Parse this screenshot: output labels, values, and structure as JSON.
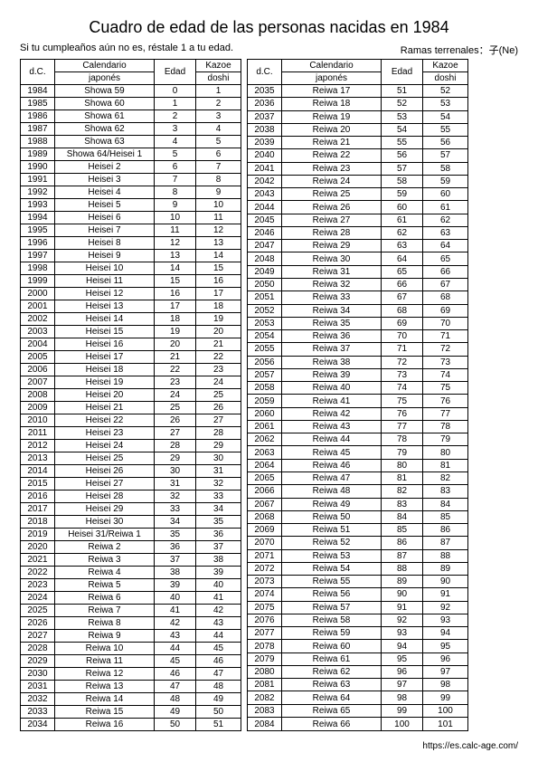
{
  "title": "Cuadro de edad de las personas nacidas en 1984",
  "sub_left": "Si tu cumpleaños aún no es, réstale 1 a tu edad.",
  "sub_right": "Ramas terrenales：子(Ne)",
  "headers": {
    "dc": "d.C.",
    "cal1": "Calendario",
    "cal2": "japonés",
    "edad": "Edad",
    "kazoe1": "Kazoe",
    "kazoe2": "doshi"
  },
  "footer": "https://es.calc-age.com/",
  "left_rows": [
    [
      "1984",
      "Showa 59",
      "0",
      "1"
    ],
    [
      "1985",
      "Showa 60",
      "1",
      "2"
    ],
    [
      "1986",
      "Showa 61",
      "2",
      "3"
    ],
    [
      "1987",
      "Showa 62",
      "3",
      "4"
    ],
    [
      "1988",
      "Showa 63",
      "4",
      "5"
    ],
    [
      "1989",
      "Showa 64/Heisei 1",
      "5",
      "6"
    ],
    [
      "1990",
      "Heisei 2",
      "6",
      "7"
    ],
    [
      "1991",
      "Heisei 3",
      "7",
      "8"
    ],
    [
      "1992",
      "Heisei 4",
      "8",
      "9"
    ],
    [
      "1993",
      "Heisei 5",
      "9",
      "10"
    ],
    [
      "1994",
      "Heisei 6",
      "10",
      "11"
    ],
    [
      "1995",
      "Heisei 7",
      "11",
      "12"
    ],
    [
      "1996",
      "Heisei 8",
      "12",
      "13"
    ],
    [
      "1997",
      "Heisei 9",
      "13",
      "14"
    ],
    [
      "1998",
      "Heisei 10",
      "14",
      "15"
    ],
    [
      "1999",
      "Heisei 11",
      "15",
      "16"
    ],
    [
      "2000",
      "Heisei 12",
      "16",
      "17"
    ],
    [
      "2001",
      "Heisei 13",
      "17",
      "18"
    ],
    [
      "2002",
      "Heisei 14",
      "18",
      "19"
    ],
    [
      "2003",
      "Heisei 15",
      "19",
      "20"
    ],
    [
      "2004",
      "Heisei 16",
      "20",
      "21"
    ],
    [
      "2005",
      "Heisei 17",
      "21",
      "22"
    ],
    [
      "2006",
      "Heisei 18",
      "22",
      "23"
    ],
    [
      "2007",
      "Heisei 19",
      "23",
      "24"
    ],
    [
      "2008",
      "Heisei 20",
      "24",
      "25"
    ],
    [
      "2009",
      "Heisei 21",
      "25",
      "26"
    ],
    [
      "2010",
      "Heisei 22",
      "26",
      "27"
    ],
    [
      "2011",
      "Heisei 23",
      "27",
      "28"
    ],
    [
      "2012",
      "Heisei 24",
      "28",
      "29"
    ],
    [
      "2013",
      "Heisei 25",
      "29",
      "30"
    ],
    [
      "2014",
      "Heisei 26",
      "30",
      "31"
    ],
    [
      "2015",
      "Heisei 27",
      "31",
      "32"
    ],
    [
      "2016",
      "Heisei 28",
      "32",
      "33"
    ],
    [
      "2017",
      "Heisei 29",
      "33",
      "34"
    ],
    [
      "2018",
      "Heisei 30",
      "34",
      "35"
    ],
    [
      "2019",
      "Heisei 31/Reiwa 1",
      "35",
      "36"
    ],
    [
      "2020",
      "Reiwa 2",
      "36",
      "37"
    ],
    [
      "2021",
      "Reiwa 3",
      "37",
      "38"
    ],
    [
      "2022",
      "Reiwa 4",
      "38",
      "39"
    ],
    [
      "2023",
      "Reiwa 5",
      "39",
      "40"
    ],
    [
      "2024",
      "Reiwa 6",
      "40",
      "41"
    ],
    [
      "2025",
      "Reiwa 7",
      "41",
      "42"
    ],
    [
      "2026",
      "Reiwa 8",
      "42",
      "43"
    ],
    [
      "2027",
      "Reiwa 9",
      "43",
      "44"
    ],
    [
      "2028",
      "Reiwa 10",
      "44",
      "45"
    ],
    [
      "2029",
      "Reiwa 11",
      "45",
      "46"
    ],
    [
      "2030",
      "Reiwa 12",
      "46",
      "47"
    ],
    [
      "2031",
      "Reiwa 13",
      "47",
      "48"
    ],
    [
      "2032",
      "Reiwa 14",
      "48",
      "49"
    ],
    [
      "2033",
      "Reiwa 15",
      "49",
      "50"
    ],
    [
      "2034",
      "Reiwa 16",
      "50",
      "51"
    ]
  ],
  "right_rows": [
    [
      "2035",
      "Reiwa 17",
      "51",
      "52"
    ],
    [
      "2036",
      "Reiwa 18",
      "52",
      "53"
    ],
    [
      "2037",
      "Reiwa 19",
      "53",
      "54"
    ],
    [
      "2038",
      "Reiwa 20",
      "54",
      "55"
    ],
    [
      "2039",
      "Reiwa 21",
      "55",
      "56"
    ],
    [
      "2040",
      "Reiwa 22",
      "56",
      "57"
    ],
    [
      "2041",
      "Reiwa 23",
      "57",
      "58"
    ],
    [
      "2042",
      "Reiwa 24",
      "58",
      "59"
    ],
    [
      "2043",
      "Reiwa 25",
      "59",
      "60"
    ],
    [
      "2044",
      "Reiwa 26",
      "60",
      "61"
    ],
    [
      "2045",
      "Reiwa 27",
      "61",
      "62"
    ],
    [
      "2046",
      "Reiwa 28",
      "62",
      "63"
    ],
    [
      "2047",
      "Reiwa 29",
      "63",
      "64"
    ],
    [
      "2048",
      "Reiwa 30",
      "64",
      "65"
    ],
    [
      "2049",
      "Reiwa 31",
      "65",
      "66"
    ],
    [
      "2050",
      "Reiwa 32",
      "66",
      "67"
    ],
    [
      "2051",
      "Reiwa 33",
      "67",
      "68"
    ],
    [
      "2052",
      "Reiwa 34",
      "68",
      "69"
    ],
    [
      "2053",
      "Reiwa 35",
      "69",
      "70"
    ],
    [
      "2054",
      "Reiwa 36",
      "70",
      "71"
    ],
    [
      "2055",
      "Reiwa 37",
      "71",
      "72"
    ],
    [
      "2056",
      "Reiwa 38",
      "72",
      "73"
    ],
    [
      "2057",
      "Reiwa 39",
      "73",
      "74"
    ],
    [
      "2058",
      "Reiwa 40",
      "74",
      "75"
    ],
    [
      "2059",
      "Reiwa 41",
      "75",
      "76"
    ],
    [
      "2060",
      "Reiwa 42",
      "76",
      "77"
    ],
    [
      "2061",
      "Reiwa 43",
      "77",
      "78"
    ],
    [
      "2062",
      "Reiwa 44",
      "78",
      "79"
    ],
    [
      "2063",
      "Reiwa 45",
      "79",
      "80"
    ],
    [
      "2064",
      "Reiwa 46",
      "80",
      "81"
    ],
    [
      "2065",
      "Reiwa 47",
      "81",
      "82"
    ],
    [
      "2066",
      "Reiwa 48",
      "82",
      "83"
    ],
    [
      "2067",
      "Reiwa 49",
      "83",
      "84"
    ],
    [
      "2068",
      "Reiwa 50",
      "84",
      "85"
    ],
    [
      "2069",
      "Reiwa 51",
      "85",
      "86"
    ],
    [
      "2070",
      "Reiwa 52",
      "86",
      "87"
    ],
    [
      "2071",
      "Reiwa 53",
      "87",
      "88"
    ],
    [
      "2072",
      "Reiwa 54",
      "88",
      "89"
    ],
    [
      "2073",
      "Reiwa 55",
      "89",
      "90"
    ],
    [
      "2074",
      "Reiwa 56",
      "90",
      "91"
    ],
    [
      "2075",
      "Reiwa 57",
      "91",
      "92"
    ],
    [
      "2076",
      "Reiwa 58",
      "92",
      "93"
    ],
    [
      "2077",
      "Reiwa 59",
      "93",
      "94"
    ],
    [
      "2078",
      "Reiwa 60",
      "94",
      "95"
    ],
    [
      "2079",
      "Reiwa 61",
      "95",
      "96"
    ],
    [
      "2080",
      "Reiwa 62",
      "96",
      "97"
    ],
    [
      "2081",
      "Reiwa 63",
      "97",
      "98"
    ],
    [
      "2082",
      "Reiwa 64",
      "98",
      "99"
    ],
    [
      "2083",
      "Reiwa 65",
      "99",
      "100"
    ],
    [
      "2084",
      "Reiwa 66",
      "100",
      "101"
    ]
  ]
}
